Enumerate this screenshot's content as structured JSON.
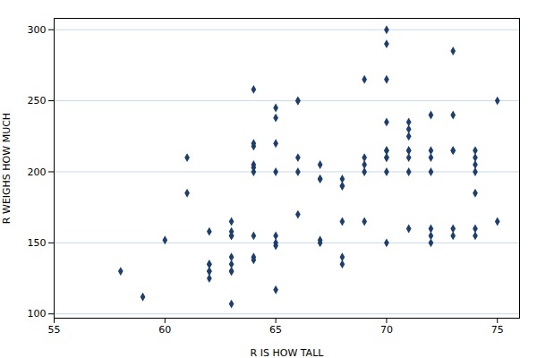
{
  "chart_data": {
    "type": "scatter",
    "xlabel": "R IS HOW TALL",
    "ylabel": "R WEIGHS HOW MUCH",
    "xlim": [
      55,
      76
    ],
    "ylim": [
      97,
      308
    ],
    "xticks": [
      55,
      60,
      65,
      70,
      75
    ],
    "yticks": [
      100,
      150,
      200,
      250,
      300
    ],
    "grid": "y",
    "color": "#1e3f6b",
    "marker": "diamond",
    "x": [
      58,
      59,
      60,
      61,
      61,
      62,
      62,
      62,
      62,
      62,
      62,
      63,
      63,
      63,
      63,
      63,
      63,
      63,
      63,
      63,
      64,
      64,
      64,
      64,
      64,
      64,
      64,
      64,
      64,
      65,
      65,
      65,
      65,
      65,
      65,
      65,
      65,
      66,
      66,
      66,
      66,
      66,
      67,
      67,
      67,
      67,
      67,
      68,
      68,
      68,
      68,
      68,
      68,
      69,
      69,
      69,
      69,
      69,
      70,
      70,
      70,
      70,
      70,
      70,
      70,
      70,
      70,
      70,
      71,
      71,
      71,
      71,
      71,
      71,
      71,
      71,
      72,
      72,
      72,
      72,
      72,
      72,
      72,
      73,
      73,
      73,
      73,
      73,
      73,
      74,
      74,
      74,
      74,
      74,
      74,
      74,
      75,
      75
    ],
    "y": [
      130,
      112,
      152,
      185,
      210,
      158,
      135,
      135,
      130,
      130,
      125,
      165,
      158,
      155,
      155,
      140,
      135,
      130,
      130,
      107,
      258,
      220,
      218,
      205,
      203,
      200,
      155,
      140,
      138,
      245,
      238,
      220,
      200,
      155,
      150,
      148,
      117,
      250,
      250,
      210,
      200,
      170,
      205,
      195,
      195,
      152,
      150,
      195,
      190,
      190,
      165,
      140,
      135,
      265,
      210,
      205,
      200,
      165,
      300,
      290,
      265,
      235,
      215,
      215,
      210,
      210,
      200,
      150,
      235,
      230,
      225,
      215,
      215,
      210,
      200,
      160,
      240,
      215,
      210,
      200,
      160,
      155,
      150,
      285,
      240,
      215,
      215,
      160,
      155,
      215,
      210,
      205,
      200,
      185,
      160,
      155,
      250,
      165
    ]
  }
}
